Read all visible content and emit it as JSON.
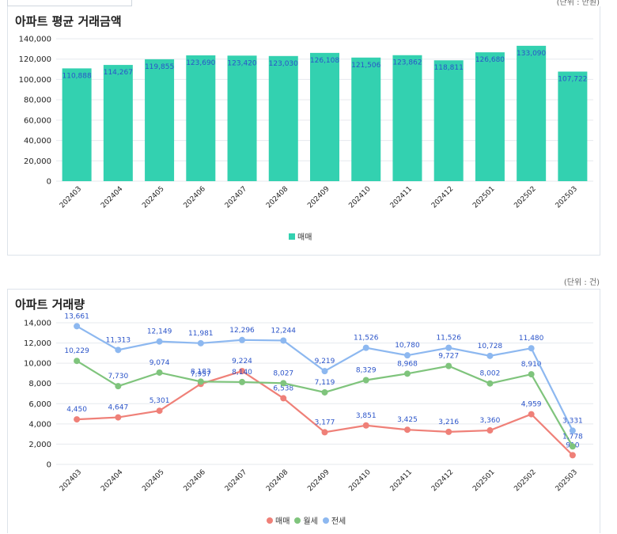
{
  "units": {
    "price": "(단위 : 만원)",
    "volume": "(단위 : 건)"
  },
  "chart_data": [
    {
      "type": "bar",
      "title": "아파트 평균 거래금액",
      "categories": [
        "202403",
        "202404",
        "202405",
        "202406",
        "202407",
        "202408",
        "202409",
        "202410",
        "202411",
        "202412",
        "202501",
        "202502",
        "202503"
      ],
      "series": [
        {
          "name": "매매",
          "color": "#33d1b0",
          "values": [
            110888,
            114267,
            119855,
            123690,
            123420,
            123030,
            126108,
            121506,
            123862,
            118811,
            126680,
            133090,
            107722
          ]
        }
      ],
      "ylim": [
        0,
        140000
      ],
      "yticks": [
        "0",
        "20,000",
        "40,000",
        "60,000",
        "80,000",
        "100,000",
        "120,000",
        "140,000"
      ],
      "grid": true,
      "legend": "bottom"
    },
    {
      "type": "line",
      "title": "아파트 거래량",
      "categories": [
        "202403",
        "202404",
        "202405",
        "202406",
        "202407",
        "202408",
        "202409",
        "202410",
        "202411",
        "202412",
        "202501",
        "202502",
        "202503"
      ],
      "series": [
        {
          "name": "매매",
          "color": "#ef8078",
          "values": [
            4450,
            4647,
            5301,
            7957,
            9224,
            6538,
            3177,
            3851,
            3425,
            3216,
            3360,
            4959,
            910
          ]
        },
        {
          "name": "월세",
          "color": "#7fc47c",
          "values": [
            10229,
            7730,
            9074,
            8183,
            8140,
            8027,
            7119,
            8329,
            8968,
            9727,
            8002,
            8910,
            1778
          ]
        },
        {
          "name": "전세",
          "color": "#8db8f0",
          "values": [
            13661,
            11313,
            12149,
            11981,
            12296,
            12244,
            9219,
            11526,
            10780,
            11526,
            10728,
            11480,
            3331
          ]
        }
      ],
      "ylim": [
        0,
        14000
      ],
      "yticks": [
        "0",
        "2,000",
        "4,000",
        "6,000",
        "8,000",
        "10,000",
        "12,000",
        "14,000"
      ],
      "grid": true,
      "legend": "bottom"
    }
  ]
}
